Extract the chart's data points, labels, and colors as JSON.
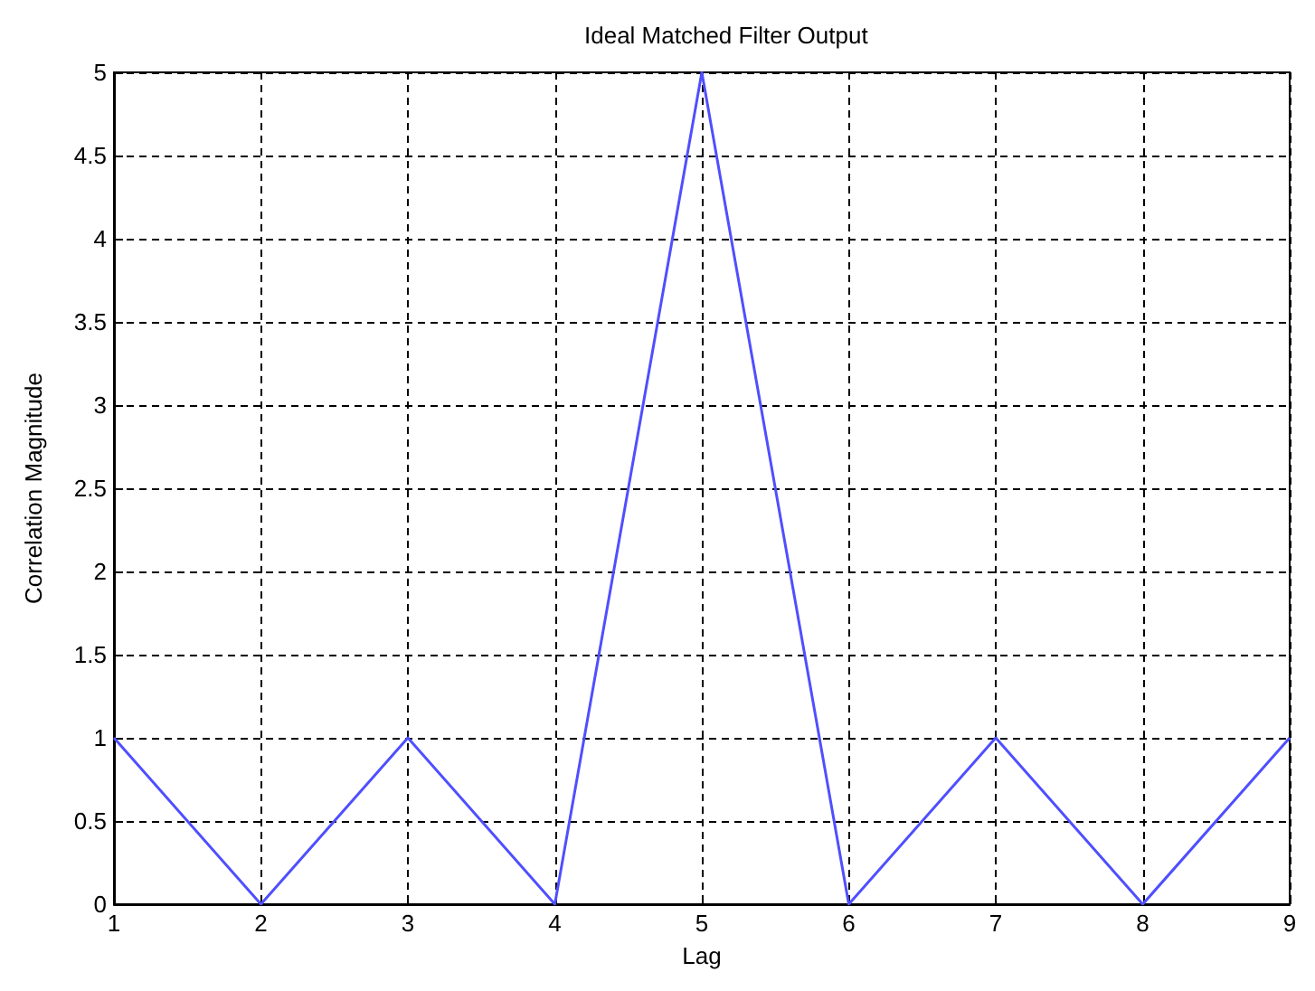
{
  "chart_data": {
    "type": "line",
    "title": "Ideal Matched Filter Output",
    "xlabel": "Lag",
    "ylabel": "Correlation Magnitude",
    "x": [
      1,
      2,
      3,
      4,
      5,
      6,
      7,
      8,
      9
    ],
    "series": [
      {
        "color": "#4f4fff",
        "values": [
          1,
          0,
          1,
          0,
          5,
          0,
          1,
          0,
          1
        ]
      }
    ],
    "xlim": [
      1,
      9
    ],
    "xticks": [
      1,
      2,
      3,
      4,
      5,
      6,
      7,
      8,
      9
    ],
    "ylim": [
      0,
      5
    ],
    "yticks": [
      0,
      0.5,
      1,
      1.5,
      2,
      2.5,
      3,
      3.5,
      4,
      4.5,
      5
    ],
    "grid": true,
    "marker": "none",
    "line_style": "solid"
  }
}
